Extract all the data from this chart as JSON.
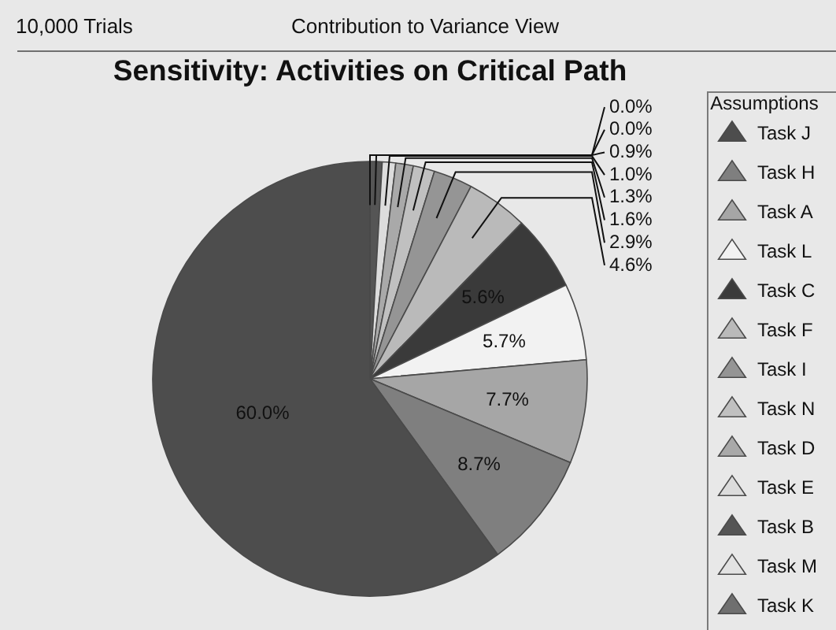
{
  "chart_data": {
    "type": "pie",
    "title": "Sensitivity: Activities on Critical Path",
    "legend_title": "Assumptions",
    "annotations": [
      "10,000 Trials",
      "Contribution to Variance View"
    ],
    "categories": [
      "Task J",
      "Task H",
      "Task A",
      "Task L",
      "Task C",
      "Task F",
      "Task I",
      "Task N",
      "Task D",
      "Task E",
      "Task B",
      "Task M",
      "Task K"
    ],
    "values": [
      60.0,
      8.7,
      7.7,
      5.7,
      5.6,
      4.6,
      2.9,
      1.6,
      1.3,
      1.0,
      0.9,
      0.0,
      0.0
    ],
    "value_labels": [
      "60.0%",
      "8.7%",
      "7.7%",
      "5.7%",
      "5.6%",
      "4.6%",
      "2.9%",
      "1.6%",
      "1.3%",
      "1.0%",
      "0.9%",
      "0.0%",
      "0.0%"
    ],
    "colors": [
      "#4d4d4d",
      "#7f7f7f",
      "#a6a6a6",
      "#f2f2f2",
      "#3a3a3a",
      "#bababa",
      "#959595",
      "#c0c0c0",
      "#a9a9a9",
      "#dcdcdc",
      "#555555",
      "#e2e2e2",
      "#6f6f6f"
    ],
    "legend": "right"
  }
}
